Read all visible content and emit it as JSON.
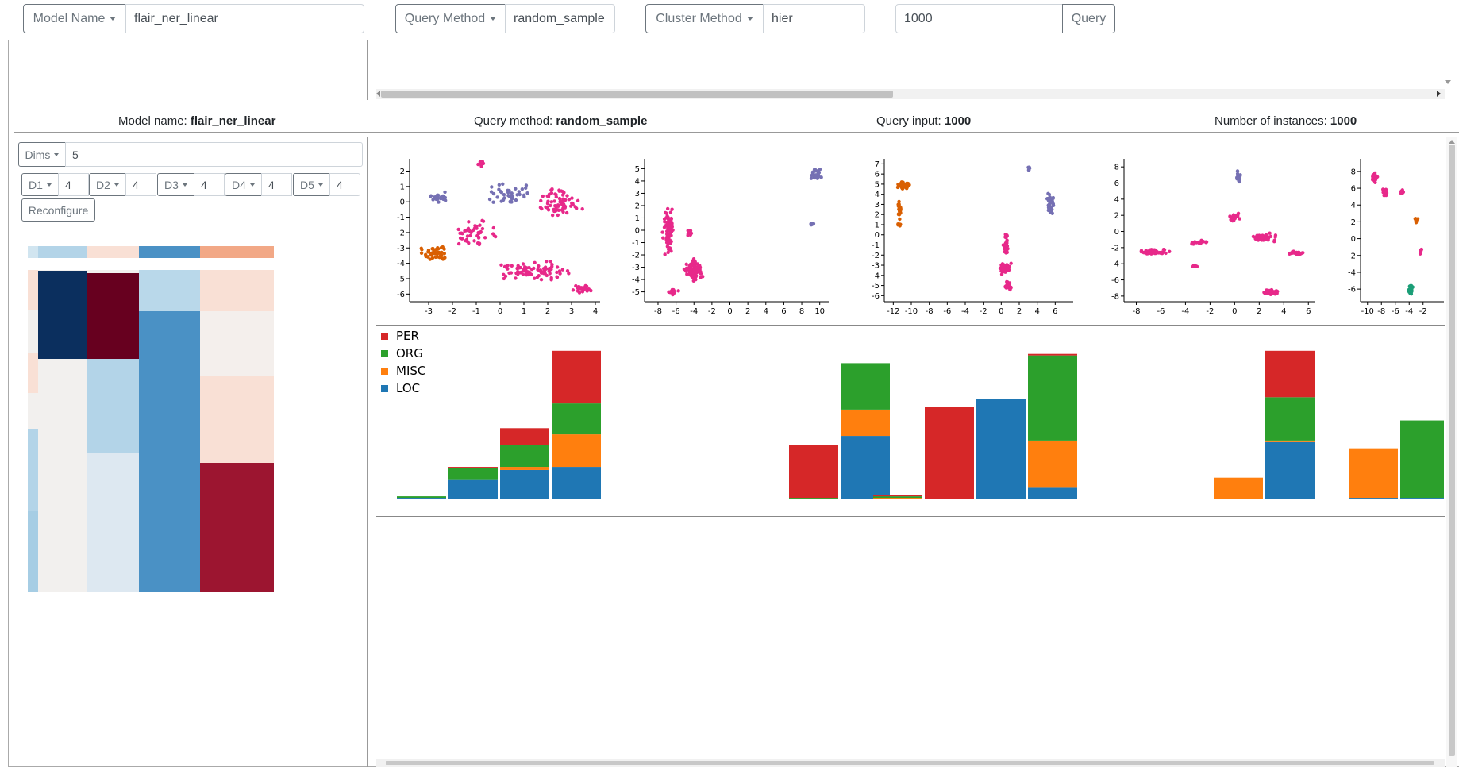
{
  "toolbar": {
    "model_name_label": "Model Name",
    "model_name_value": "flair_ner_linear",
    "query_method_label": "Query Method",
    "query_method_value": "random_sample",
    "cluster_method_label": "Cluster Method",
    "cluster_method_value": "hier",
    "query_input_value": "1000",
    "query_button": "Query"
  },
  "info": {
    "model_label": "Model name: ",
    "model_value": "flair_ner_linear",
    "method_label": "Query method: ",
    "method_value": "random_sample",
    "input_label": "Query input: ",
    "input_value": "1000",
    "instances_label": "Number of instances: ",
    "instances_value": "1000"
  },
  "controls": {
    "dims_label": "Dims",
    "dims_value": "5",
    "dims_list": [
      {
        "label": "D1",
        "value": "4"
      },
      {
        "label": "D2",
        "value": "4"
      },
      {
        "label": "D3",
        "value": "4"
      },
      {
        "label": "D4",
        "value": "4"
      },
      {
        "label": "D5",
        "value": "4"
      }
    ],
    "reconfigure_button": "Reconfigure"
  },
  "colors": {
    "PER": "#d62728",
    "ORG": "#2ca02c",
    "MISC": "#ff7f0e",
    "LOC": "#1f77b4",
    "cluster_pink": "#e7298a",
    "cluster_purple": "#7570b3",
    "cluster_orange": "#d95f02",
    "cluster_green": "#1b9e77"
  },
  "chart_data": [
    {
      "type": "scatter",
      "xticks": [
        "-3",
        "-2",
        "-1",
        "0",
        "1",
        "2",
        "3",
        "4"
      ],
      "yticks": [
        "2",
        "1",
        "0",
        "-1",
        "-2",
        "-3",
        "-4",
        "-5",
        "-6"
      ],
      "xlim": [
        -3.8,
        4.2
      ],
      "ylim": [
        -6.5,
        2.8
      ]
    },
    {
      "type": "scatter",
      "xticks": [
        "-8",
        "-6",
        "-4",
        "-2",
        "0",
        "2",
        "4",
        "6",
        "8",
        "10"
      ],
      "yticks": [
        "5",
        "4",
        "3",
        "2",
        "1",
        "0",
        "-1",
        "-2",
        "-3",
        "-4",
        "-5"
      ],
      "xlim": [
        -9.5,
        11
      ],
      "ylim": [
        -5.8,
        5.8
      ]
    },
    {
      "type": "scatter",
      "xticks": [
        "-12",
        "-10",
        "-8",
        "-6",
        "-4",
        "-2",
        "0",
        "2",
        "4",
        "6"
      ],
      "yticks": [
        "7",
        "6",
        "5",
        "4",
        "3",
        "2",
        "1",
        "0",
        "-1",
        "-2",
        "-3",
        "-4",
        "-5",
        "-6"
      ],
      "xlim": [
        -13,
        8
      ],
      "ylim": [
        -6.6,
        7.5
      ]
    },
    {
      "type": "scatter",
      "xticks": [
        "-8",
        "-6",
        "-4",
        "-2",
        "0",
        "2",
        "4",
        "6"
      ],
      "yticks": [
        "8",
        "6",
        "4",
        "2",
        "0",
        "-2",
        "-4",
        "-6",
        "-8"
      ],
      "xlim": [
        -9,
        6.5
      ],
      "ylim": [
        -8.7,
        9
      ]
    },
    {
      "type": "scatter",
      "xticks": [
        "-10",
        "-8",
        "-6",
        "-4",
        "-2"
      ],
      "yticks": [
        "8",
        "6",
        "4",
        "2",
        "0",
        "-2",
        "-4",
        "-6"
      ],
      "xlim": [
        -11,
        1
      ],
      "ylim": [
        -7.5,
        9.5
      ]
    },
    {
      "type": "bar",
      "stacked": true,
      "legend": [
        "PER",
        "ORG",
        "MISC",
        "LOC"
      ],
      "legend_position": "top-left",
      "series": [
        {
          "name": "LOC"
        },
        {
          "name": "MISC"
        },
        {
          "name": "ORG"
        },
        {
          "name": "PER"
        }
      ],
      "groups": [
        {
          "bars": [
            {
              "LOC": 1,
              "MISC": 0,
              "ORG": 1,
              "PER": 0
            },
            {
              "LOC": 13,
              "MISC": 0,
              "ORG": 7,
              "PER": 1
            },
            {
              "LOC": 19,
              "MISC": 2,
              "ORG": 14,
              "PER": 11
            },
            {
              "LOC": 21,
              "MISC": 21,
              "ORG": 20,
              "PER": 34
            }
          ]
        },
        {
          "bars": [
            {
              "LOC": 0,
              "MISC": 0,
              "ORG": 0,
              "PER": 0
            },
            {
              "LOC": 0,
              "MISC": 0,
              "ORG": 1,
              "PER": 34
            },
            {
              "LOC": 41,
              "MISC": 17,
              "ORG": 30,
              "PER": 0
            }
          ]
        },
        {
          "bars": [
            {
              "LOC": 0,
              "MISC": 1,
              "ORG": 1,
              "PER": 1
            },
            {
              "LOC": 0,
              "MISC": 0,
              "ORG": 0,
              "PER": 60
            },
            {
              "LOC": 65,
              "MISC": 0,
              "ORG": 0,
              "PER": 0
            },
            {
              "LOC": 8,
              "MISC": 30,
              "ORG": 55,
              "PER": 1
            }
          ]
        },
        {
          "bars": [
            {
              "LOC": 0,
              "MISC": 14,
              "ORG": 0,
              "PER": 0
            },
            {
              "LOC": 37,
              "MISC": 1,
              "ORG": 28,
              "PER": 30
            }
          ]
        },
        {
          "bars": [
            {
              "LOC": 1,
              "MISC": 32,
              "ORG": 0,
              "PER": 0
            },
            {
              "LOC": 1,
              "MISC": 0,
              "ORG": 50,
              "PER": 0
            }
          ]
        }
      ],
      "ylim": [
        0,
        100
      ]
    },
    {
      "type": "heatmap",
      "columns": 5,
      "header_colors": [
        "#d1e5f0",
        "#b3d4e8",
        "#f9e0d5",
        "#4a91c5",
        "#f2a886"
      ]
    }
  ]
}
